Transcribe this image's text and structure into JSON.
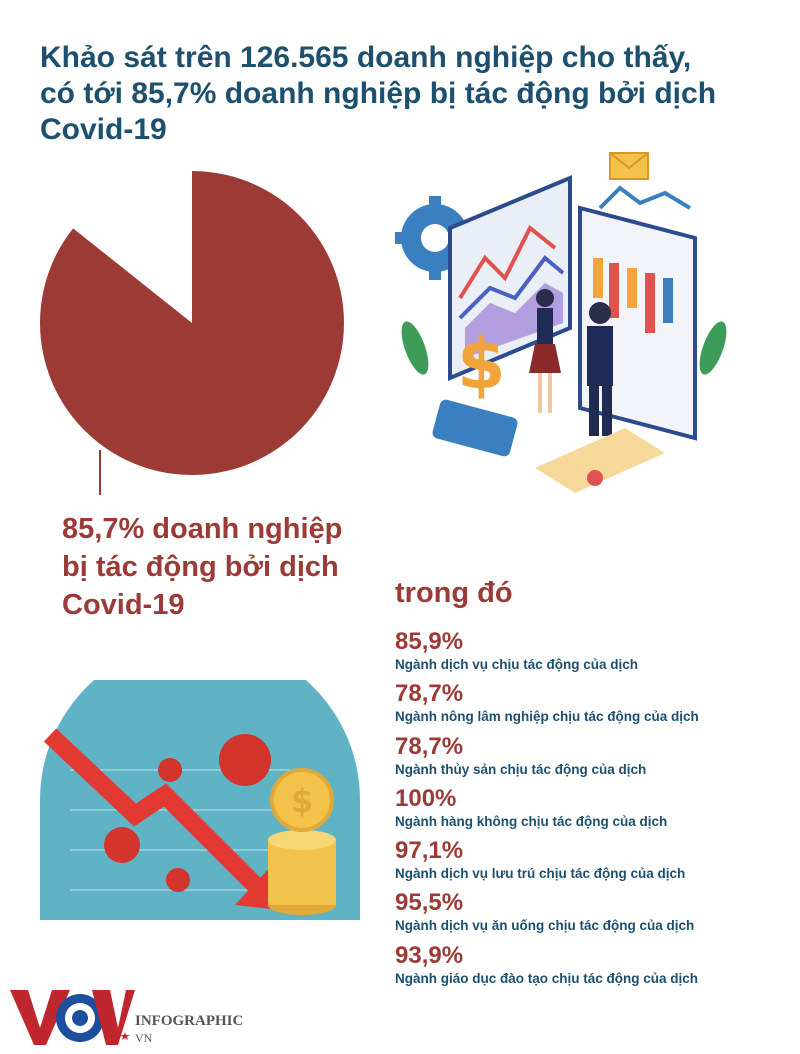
{
  "title": "Khảo sát trên 126.565 doanh nghiệp cho thấy, có tới 85,7% doanh nghiệp bị tác động bởi dịch Covid-19",
  "pie": {
    "value": 85.7,
    "caption": "85,7% doanh nghiệp bị tác động bởi dịch Covid-19",
    "color": "#9c3a36"
  },
  "subheading": "trong đó",
  "stats": [
    {
      "value": "85,9%",
      "label": "Ngành dịch vụ chịu tác động của dịch"
    },
    {
      "value": "78,7%",
      "label": "Ngành nông lâm nghiệp chịu tác động của dịch"
    },
    {
      "value": "78,7%",
      "label": "Ngành thủy sản chịu tác động của dịch"
    },
    {
      "value": "100%",
      "label": "Ngành hàng không chịu tác động của dịch"
    },
    {
      "value": "97,1%",
      "label": "Ngành dịch vụ lưu trú chịu tác động của dịch"
    },
    {
      "value": "95,5%",
      "label": "Ngành dịch vụ ăn uống chịu tác động của dịch"
    },
    {
      "value": "93,9%",
      "label": "Ngành giáo dục đào tạo chịu tác động của dịch"
    }
  ],
  "logo": {
    "brand": "VOV",
    "line1": "INFOGRAPHIC",
    "line2": "VN"
  },
  "colors": {
    "title": "#1d4f6e",
    "accent": "#9c3a36",
    "teal": "#5fb3c4",
    "gold": "#f2c24a"
  }
}
